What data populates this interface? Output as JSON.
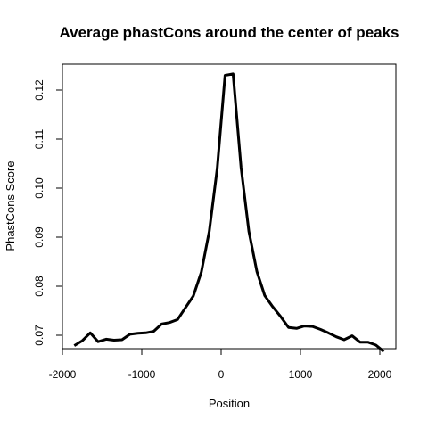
{
  "chart_data": {
    "type": "line",
    "title": "Average phastCons around the center of peaks",
    "xlabel": "Position",
    "ylabel": "PhastCons Score",
    "xlim": [
      -2000,
      2000
    ],
    "ylim": [
      0.065,
      0.125
    ],
    "xticks": [
      -2000,
      -1000,
      0,
      1000,
      2000
    ],
    "xtick_labels": [
      "-2000",
      "-1000",
      "0",
      "1000",
      "2000"
    ],
    "yticks": [
      0.07,
      0.08,
      0.09,
      0.1,
      0.11,
      0.12
    ],
    "ytick_labels": [
      "0.07",
      "0.08",
      "0.09",
      "0.10",
      "0.11",
      "0.12"
    ],
    "grid": false,
    "line_color": "#000000",
    "series": [
      {
        "x": [
          -1850,
          -1750,
          -1650,
          -1550,
          -1450,
          -1350,
          -1250,
          -1150,
          -1050,
          -950,
          -850,
          -750,
          -650,
          -550,
          -450,
          -350,
          -250,
          -150,
          -50,
          50,
          150,
          250,
          350,
          450,
          550,
          650,
          750,
          850,
          950,
          1050,
          1150,
          1250,
          1350,
          1450,
          1550,
          1650,
          1750,
          1850,
          1950,
          2050
        ],
        "y": [
          0.0679,
          0.0689,
          0.0705,
          0.0687,
          0.0692,
          0.069,
          0.0691,
          0.0702,
          0.0704,
          0.0705,
          0.0708,
          0.0723,
          0.0726,
          0.0732,
          0.0756,
          0.078,
          0.0829,
          0.0912,
          0.104,
          0.123,
          0.1233,
          0.1043,
          0.0912,
          0.083,
          0.0781,
          0.0758,
          0.0738,
          0.0716,
          0.0714,
          0.0719,
          0.0718,
          0.0712,
          0.0705,
          0.0697,
          0.0691,
          0.0699,
          0.0686,
          0.0686,
          0.068,
          0.0667
        ]
      }
    ]
  }
}
